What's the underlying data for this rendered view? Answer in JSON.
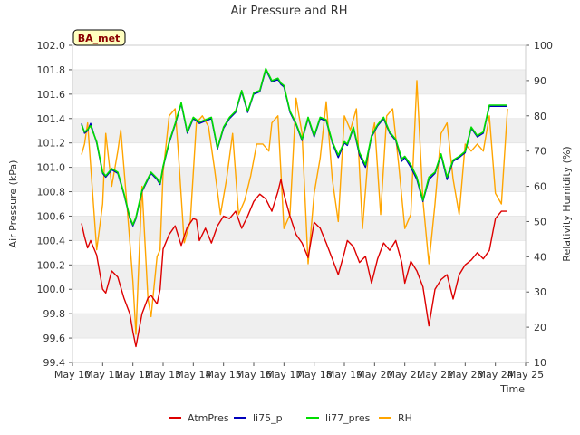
{
  "chart_data": {
    "type": "line",
    "title": "Air Pressure and RH",
    "site_label": "BA_met",
    "xlabel": "Time",
    "ylabel": "Air Pressure (kPa)",
    "y2label": "Relativity Humidity (%)",
    "xlim": [
      10,
      25
    ],
    "ylim": [
      99.4,
      102.0
    ],
    "y2lim": [
      10,
      100
    ],
    "x_ticks": [
      10,
      11,
      12,
      13,
      14,
      15,
      16,
      17,
      18,
      19,
      20,
      21,
      22,
      23,
      24,
      25
    ],
    "x_tick_labels": [
      "May 10",
      "May 11",
      "May 12",
      "May 13",
      "May 14",
      "May 15",
      "May 16",
      "May 17",
      "May 18",
      "May 19",
      "May 20",
      "May 21",
      "May 22",
      "May 23",
      "May 24",
      "May 25"
    ],
    "y_ticks": [
      "99.4",
      "99.6",
      "99.8",
      "100.0",
      "100.2",
      "100.4",
      "100.6",
      "100.8",
      "101.0",
      "101.2",
      "101.4",
      "101.6",
      "101.8",
      "102.0"
    ],
    "y2_ticks": [
      "10",
      "20",
      "30",
      "40",
      "50",
      "60",
      "70",
      "80",
      "90",
      "100"
    ],
    "legend_position": "bottom",
    "series": [
      {
        "name": "AtmPres",
        "axis": "left",
        "color": "#dd0000",
        "width": 1.4,
        "x": [
          10.3,
          10.4,
          10.5,
          10.6,
          10.8,
          11.0,
          11.1,
          11.3,
          11.5,
          11.7,
          11.9,
          12.0,
          12.1,
          12.3,
          12.5,
          12.6,
          12.8,
          12.9,
          13.0,
          13.2,
          13.4,
          13.6,
          13.8,
          14.0,
          14.1,
          14.2,
          14.4,
          14.6,
          14.8,
          15.0,
          15.2,
          15.4,
          15.6,
          15.8,
          16.0,
          16.2,
          16.4,
          16.6,
          16.8,
          16.9,
          17.0,
          17.2,
          17.4,
          17.6,
          17.8,
          18.0,
          18.2,
          18.4,
          18.6,
          18.8,
          19.0,
          19.1,
          19.3,
          19.5,
          19.7,
          19.9,
          20.1,
          20.3,
          20.5,
          20.7,
          20.9,
          21.0,
          21.2,
          21.4,
          21.6,
          21.8,
          22.0,
          22.2,
          22.4,
          22.6,
          22.8,
          23.0,
          23.2,
          23.4,
          23.6,
          23.8,
          24.0,
          24.2,
          24.4
        ],
        "y": [
          100.54,
          100.43,
          100.34,
          100.4,
          100.28,
          100.0,
          99.97,
          100.15,
          100.1,
          99.93,
          99.8,
          99.65,
          99.53,
          99.8,
          99.93,
          99.95,
          99.88,
          100.0,
          100.33,
          100.45,
          100.52,
          100.36,
          100.51,
          100.58,
          100.57,
          100.4,
          100.5,
          100.38,
          100.52,
          100.6,
          100.58,
          100.64,
          100.5,
          100.6,
          100.72,
          100.78,
          100.74,
          100.64,
          100.8,
          100.9,
          100.78,
          100.6,
          100.45,
          100.38,
          100.26,
          100.55,
          100.5,
          100.38,
          100.25,
          100.12,
          100.3,
          100.4,
          100.35,
          100.22,
          100.27,
          100.05,
          100.25,
          100.38,
          100.32,
          100.4,
          100.22,
          100.05,
          100.23,
          100.15,
          100.02,
          99.7,
          100.0,
          100.08,
          100.12,
          99.92,
          100.12,
          100.2,
          100.24,
          100.3,
          100.25,
          100.32,
          100.58,
          100.64,
          100.64
        ]
      },
      {
        "name": "li75_p",
        "axis": "left",
        "color": "#0000bb",
        "width": 1.4,
        "x": [
          10.3,
          10.4,
          10.5,
          10.6,
          10.8,
          11.0,
          11.1,
          11.3,
          11.5,
          11.7,
          11.9,
          12.0,
          12.1,
          12.3,
          12.5,
          12.6,
          12.8,
          12.9,
          13.0,
          13.2,
          13.4,
          13.6,
          13.8,
          14.0,
          14.1,
          14.2,
          14.4,
          14.6,
          14.8,
          15.0,
          15.2,
          15.4,
          15.6,
          15.8,
          16.0,
          16.2,
          16.4,
          16.6,
          16.8,
          16.9,
          17.0,
          17.2,
          17.4,
          17.6,
          17.8,
          18.0,
          18.2,
          18.4,
          18.6,
          18.8,
          19.0,
          19.1,
          19.3,
          19.5,
          19.7,
          19.9,
          20.1,
          20.3,
          20.5,
          20.7,
          20.9,
          21.0,
          21.2,
          21.4,
          21.6,
          21.8,
          22.0,
          22.2,
          22.4,
          22.6,
          22.8,
          23.0,
          23.2,
          23.4,
          23.6,
          23.8,
          24.0,
          24.2,
          24.4
        ],
        "y": [
          101.36,
          101.28,
          101.3,
          101.36,
          101.2,
          100.95,
          100.92,
          100.98,
          100.95,
          100.78,
          100.58,
          100.52,
          100.58,
          100.8,
          100.9,
          100.95,
          100.9,
          100.86,
          101.0,
          101.2,
          101.35,
          101.52,
          101.28,
          101.4,
          101.38,
          101.36,
          101.38,
          101.4,
          101.15,
          101.32,
          101.4,
          101.45,
          101.62,
          101.45,
          101.6,
          101.62,
          101.8,
          101.7,
          101.72,
          101.68,
          101.66,
          101.45,
          101.35,
          101.22,
          101.4,
          101.25,
          101.4,
          101.38,
          101.2,
          101.08,
          101.2,
          101.18,
          101.32,
          101.1,
          101.0,
          101.25,
          101.34,
          101.4,
          101.28,
          101.22,
          101.05,
          101.08,
          101.0,
          100.9,
          100.72,
          100.9,
          100.95,
          101.1,
          100.9,
          101.05,
          101.08,
          101.12,
          101.32,
          101.25,
          101.28,
          101.5,
          101.5,
          101.5,
          101.5
        ]
      },
      {
        "name": "li77_pres",
        "axis": "left",
        "color": "#00dd00",
        "width": 1.6,
        "x": [
          10.3,
          10.4,
          10.5,
          10.6,
          10.8,
          11.0,
          11.1,
          11.3,
          11.5,
          11.7,
          11.9,
          12.0,
          12.1,
          12.3,
          12.5,
          12.6,
          12.8,
          12.9,
          13.0,
          13.2,
          13.4,
          13.6,
          13.8,
          14.0,
          14.1,
          14.2,
          14.4,
          14.6,
          14.8,
          15.0,
          15.2,
          15.4,
          15.6,
          15.8,
          16.0,
          16.2,
          16.4,
          16.6,
          16.8,
          16.9,
          17.0,
          17.2,
          17.4,
          17.6,
          17.8,
          18.0,
          18.2,
          18.4,
          18.6,
          18.8,
          19.0,
          19.1,
          19.3,
          19.5,
          19.7,
          19.9,
          20.1,
          20.3,
          20.5,
          20.7,
          20.9,
          21.0,
          21.2,
          21.4,
          21.6,
          21.8,
          22.0,
          22.2,
          22.4,
          22.6,
          22.8,
          23.0,
          23.2,
          23.4,
          23.6,
          23.8,
          24.0,
          24.2,
          24.4
        ],
        "y": [
          101.35,
          101.29,
          101.31,
          101.34,
          101.21,
          100.96,
          100.93,
          100.99,
          100.96,
          100.79,
          100.59,
          100.53,
          100.59,
          100.81,
          100.91,
          100.96,
          100.91,
          100.87,
          101.01,
          101.21,
          101.36,
          101.53,
          101.29,
          101.41,
          101.39,
          101.37,
          101.39,
          101.41,
          101.16,
          101.33,
          101.41,
          101.46,
          101.63,
          101.46,
          101.61,
          101.63,
          101.81,
          101.71,
          101.73,
          101.69,
          101.67,
          101.46,
          101.36,
          101.23,
          101.41,
          101.26,
          101.41,
          101.39,
          101.21,
          101.1,
          101.21,
          101.19,
          101.33,
          101.12,
          101.02,
          101.26,
          101.35,
          101.41,
          101.29,
          101.23,
          101.07,
          101.09,
          101.02,
          100.92,
          100.73,
          100.92,
          100.96,
          101.11,
          100.92,
          101.06,
          101.09,
          101.13,
          101.33,
          101.26,
          101.29,
          101.51,
          101.51,
          101.51,
          101.51
        ]
      },
      {
        "name": "RH",
        "axis": "right",
        "color": "#ffa500",
        "width": 1.4,
        "x": [
          10.3,
          10.4,
          10.5,
          10.6,
          10.8,
          11.0,
          11.1,
          11.3,
          11.5,
          11.6,
          11.8,
          12.0,
          12.1,
          12.3,
          12.5,
          12.6,
          12.8,
          12.9,
          13.0,
          13.2,
          13.4,
          13.5,
          13.7,
          13.9,
          14.1,
          14.3,
          14.5,
          14.7,
          14.9,
          15.1,
          15.3,
          15.5,
          15.7,
          15.9,
          16.1,
          16.3,
          16.5,
          16.6,
          16.8,
          17.0,
          17.2,
          17.4,
          17.6,
          17.8,
          18.0,
          18.2,
          18.4,
          18.6,
          18.8,
          19.0,
          19.2,
          19.4,
          19.6,
          19.8,
          20.0,
          20.2,
          20.4,
          20.6,
          20.8,
          21.0,
          21.2,
          21.4,
          21.6,
          21.8,
          22.0,
          22.2,
          22.4,
          22.6,
          22.8,
          23.0,
          23.2,
          23.4,
          23.6,
          23.8,
          24.0,
          24.2,
          24.4
        ],
        "y": [
          69,
          72,
          78,
          66,
          42,
          55,
          75,
          60,
          70,
          76,
          55,
          33,
          18,
          60,
          28,
          23,
          40,
          42,
          64,
          80,
          82,
          70,
          44,
          50,
          78,
          80,
          77,
          65,
          52,
          62,
          75,
          52,
          56,
          63,
          72,
          72,
          70,
          78,
          80,
          48,
          52,
          85,
          75,
          38,
          58,
          68,
          84,
          62,
          50,
          80,
          76,
          82,
          48,
          70,
          78,
          52,
          80,
          82,
          66,
          48,
          52,
          90,
          56,
          38,
          55,
          75,
          78,
          62,
          52,
          72,
          70,
          72,
          70,
          80,
          58,
          55,
          82
        ]
      }
    ]
  }
}
